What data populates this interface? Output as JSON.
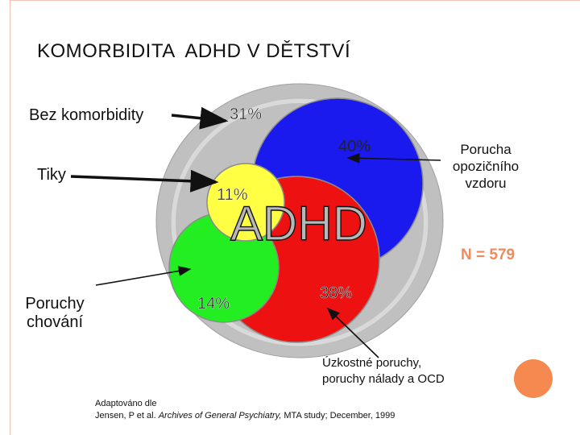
{
  "title": "KOMORBIDITA  ADHD V DĚTSTVÍ",
  "labels": {
    "no_comorbidity": "Bez komorbidity",
    "tics": "Tiky",
    "conduct_line1": "Poruchy",
    "conduct_line2": "chování",
    "odd_line1": "Porucha",
    "odd_line2": "opozičního",
    "odd_line3": "vzdoru",
    "anxiety_line1": "Úzkostné poruchy,",
    "anxiety_line2": "poruchy nálady a OCD",
    "n": "N = 579",
    "center": "ADHD"
  },
  "percentages": {
    "no_comorbidity": "31%",
    "odd": "40%",
    "tics": "11%",
    "conduct": "14%",
    "anxiety": "38%"
  },
  "credit": {
    "line1": "Adaptováno dle",
    "line2_prefix": "Jensen, P et al. ",
    "line2_journal": "Archives of General Psychiatry,",
    "line2_suffix": " MTA study; December, 1999"
  },
  "colors": {
    "outer": "#c0c0c0",
    "ring": "#d9d9d9",
    "odd": "#1a1aee",
    "anxiety": "#ee1111",
    "conduct": "#22ee22",
    "tics": "#ffff44",
    "n_label": "#f08a5c"
  }
}
